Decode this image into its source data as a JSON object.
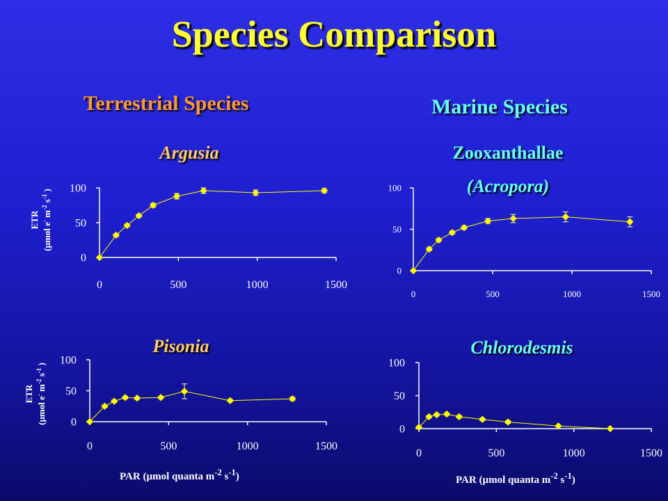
{
  "title": "Species Comparison",
  "groups": {
    "terrestrial": "Terrestrial Species",
    "marine": "Marine Species"
  },
  "x_axis_label": {
    "main": "PAR (µmol quanta m",
    "sup1": "-2",
    "mid": " s",
    "sup2": "-1",
    "end": ")"
  },
  "y_axis_label": {
    "line1": "ETR",
    "line2_main": "(µmol e",
    "line2_sup1": "-",
    "line2_mid1": " m",
    "line2_sup2": "-2",
    "line2_mid2": " s",
    "line2_sup3": "-1",
    "line2_end": " )"
  },
  "colors": {
    "background_top": "#2e2ee6",
    "background_bottom": "#0a0a6a",
    "title": "#ffff33",
    "terrestrial": "#ff9933",
    "marine": "#66ffff",
    "marker": "#ffff00",
    "axis_text": "#ffffff"
  },
  "chart_data": [
    {
      "type": "line",
      "title": "Argusia",
      "xlim": [
        0,
        1500
      ],
      "ylim": [
        0,
        100
      ],
      "xticks": [
        0,
        500,
        1000,
        1500
      ],
      "yticks": [
        0,
        50,
        100
      ],
      "series": [
        {
          "x": [
            0,
            105,
            175,
            250,
            340,
            490,
            660,
            990,
            1425
          ],
          "y": [
            0,
            32,
            46,
            60,
            75,
            88,
            96,
            93,
            96
          ],
          "err": [
            0,
            2,
            2,
            2,
            3,
            4,
            4,
            4,
            3
          ]
        }
      ]
    },
    {
      "type": "line",
      "title": "Zooxanthallae",
      "subtitle": "(Acropora)",
      "xlim": [
        0,
        1500
      ],
      "ylim": [
        0,
        100
      ],
      "xticks": [
        0,
        500,
        1000,
        1500
      ],
      "yticks": [
        0,
        50,
        100
      ],
      "series": [
        {
          "x": [
            0,
            100,
            160,
            245,
            320,
            470,
            630,
            960,
            1365
          ],
          "y": [
            0,
            26,
            37,
            46,
            52,
            60,
            63,
            65,
            59
          ],
          "err": [
            0,
            2,
            2,
            2,
            2,
            3,
            5,
            6,
            6
          ]
        }
      ]
    },
    {
      "type": "line",
      "title": "Pisonia",
      "xlim": [
        0,
        1500
      ],
      "ylim": [
        0,
        100
      ],
      "xticks": [
        0,
        500,
        1000,
        1500
      ],
      "yticks": [
        0,
        50,
        100
      ],
      "series": [
        {
          "x": [
            0,
            95,
            155,
            225,
            300,
            450,
            600,
            890,
            1285
          ],
          "y": [
            0,
            25,
            33,
            39,
            38,
            39,
            49,
            34,
            37
          ],
          "err": [
            0,
            2,
            2,
            2,
            2,
            2,
            12,
            2,
            3
          ]
        }
      ]
    },
    {
      "type": "line",
      "title": "Chlorodesmis",
      "xlim": [
        0,
        1500
      ],
      "ylim": [
        0,
        100
      ],
      "xticks": [
        0,
        500,
        1000,
        1500
      ],
      "yticks": [
        0,
        50,
        100
      ],
      "series": [
        {
          "x": [
            0,
            65,
            115,
            180,
            260,
            410,
            575,
            900,
            1235
          ],
          "y": [
            2,
            18,
            21,
            22,
            18,
            14,
            10,
            4,
            0
          ],
          "err": [
            0,
            2,
            2,
            2,
            2,
            2,
            2,
            1,
            1
          ]
        }
      ]
    }
  ]
}
